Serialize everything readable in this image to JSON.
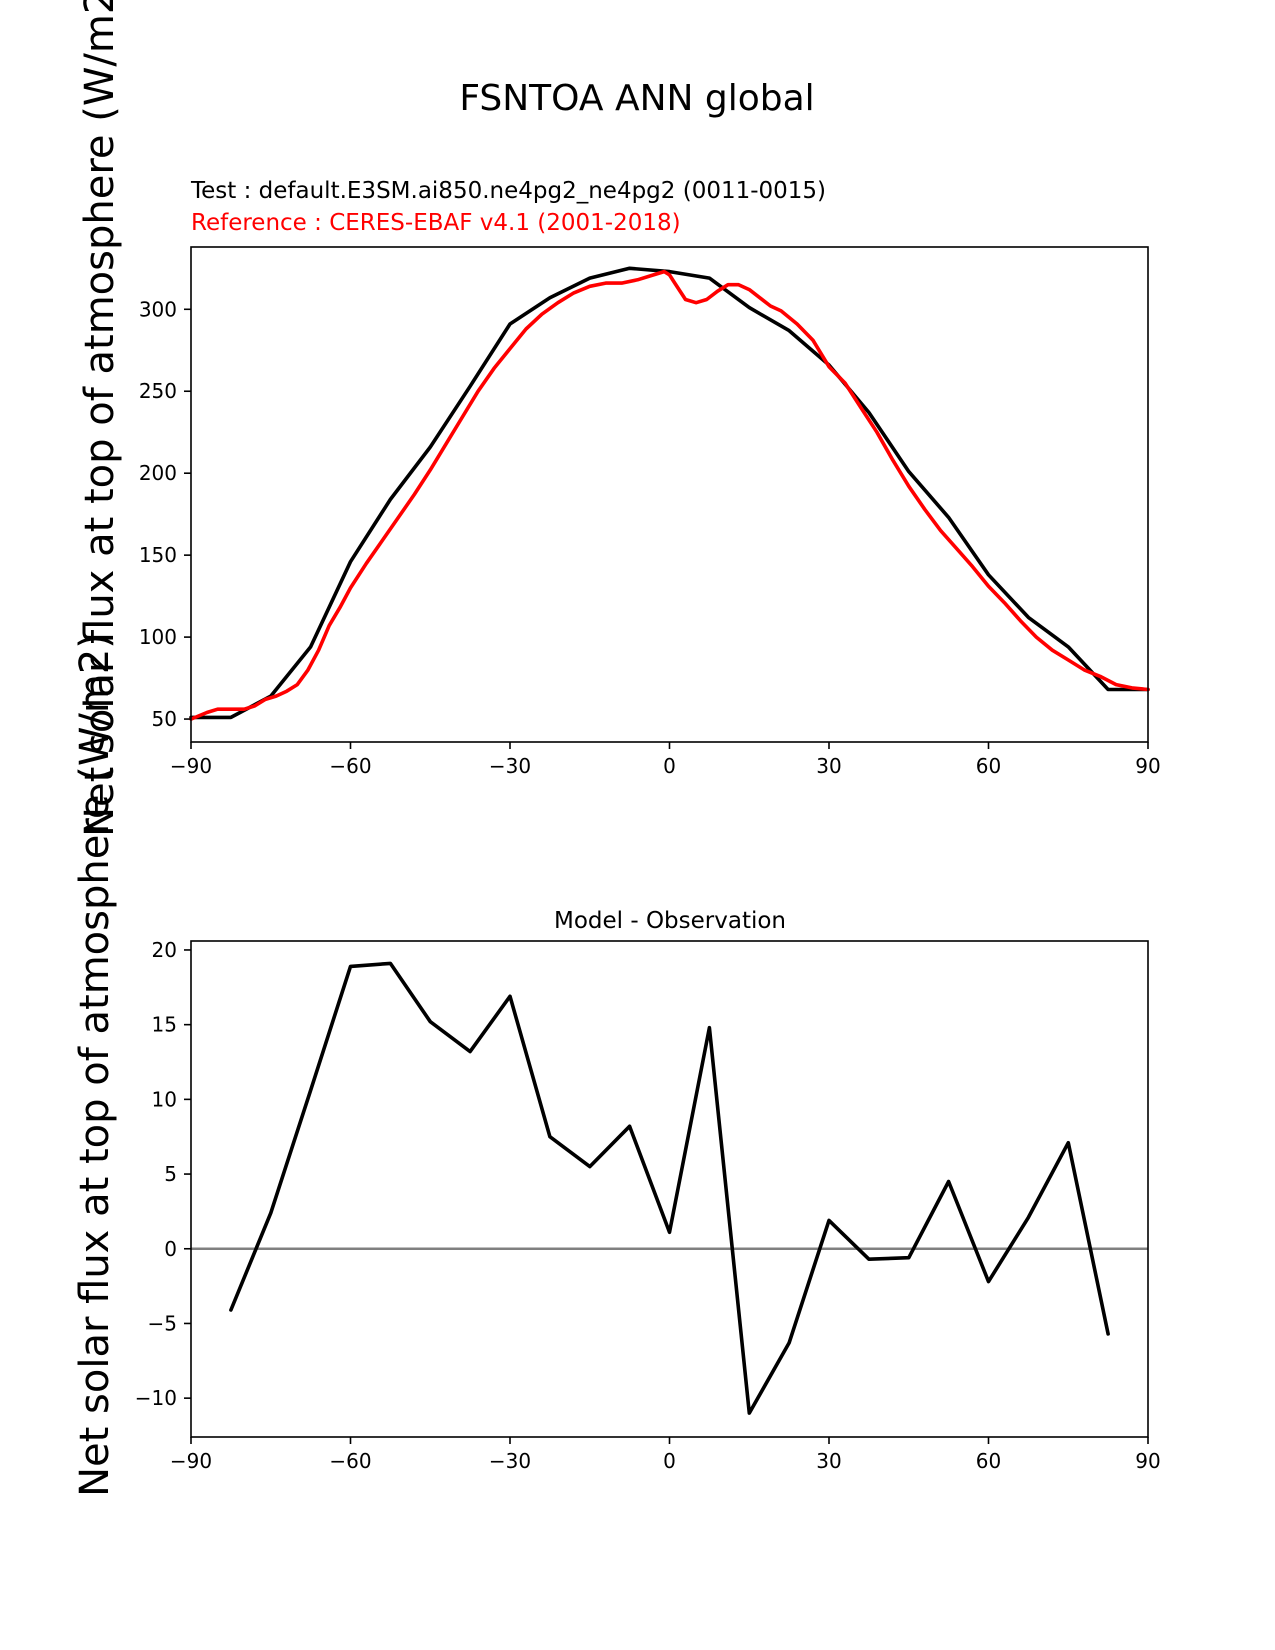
{
  "figure": {
    "title": "FSNTOA ANN global",
    "test_label": "Test : default.E3SM.ai850.ne4pg2_ne4pg2 (0011-0015)",
    "ref_label": "Reference : CERES-EBAF v4.1 (2001-2018)",
    "ylabel": "Net solar flux at top of atmosphere (W/m2)",
    "colors": {
      "test": "#000000",
      "reference": "#ff0000",
      "zero_line": "#808080"
    }
  },
  "chart_data": [
    {
      "type": "line",
      "title": "",
      "xlabel": "",
      "ylabel": "Net solar flux at top of atmosphere (W/m2)",
      "xlim": [
        -90,
        90
      ],
      "ylim": [
        36,
        338
      ],
      "xticks": [
        -90,
        -60,
        -30,
        0,
        30,
        60,
        90
      ],
      "xtick_labels": [
        "−90",
        "−60",
        "−30",
        "0",
        "30",
        "60",
        "90"
      ],
      "yticks": [
        50,
        100,
        150,
        200,
        250,
        300
      ],
      "ytick_labels": [
        "50",
        "100",
        "150",
        "200",
        "250",
        "300"
      ],
      "series": [
        {
          "name": "Test",
          "color": "#000000",
          "x": [
            -90,
            -82.5,
            -75,
            -67.5,
            -60,
            -52.5,
            -45,
            -37.5,
            -30,
            -22.5,
            -15,
            -7.5,
            0,
            7.5,
            15,
            22.5,
            30,
            37.5,
            45,
            52.5,
            60,
            67.5,
            75,
            82.5,
            90
          ],
          "y": [
            51,
            51,
            64,
            94,
            146,
            184,
            216,
            253,
            291,
            307,
            319,
            325,
            323,
            319,
            301,
            287,
            266,
            237,
            201,
            173,
            138,
            112,
            94,
            68,
            68
          ]
        },
        {
          "name": "Reference",
          "color": "#ff0000",
          "x": [
            -90,
            -87,
            -85,
            -82,
            -80,
            -78,
            -76,
            -74,
            -72,
            -70,
            -68,
            -66,
            -64,
            -62,
            -60,
            -57,
            -54,
            -51,
            -48,
            -45,
            -42,
            -39,
            -36,
            -33,
            -30,
            -27,
            -24,
            -21,
            -18,
            -15,
            -12,
            -9,
            -6,
            -3,
            -1,
            0,
            1,
            3,
            5,
            7,
            9,
            11,
            13,
            15,
            17,
            19,
            21,
            24,
            27,
            30,
            33,
            36,
            39,
            42,
            45,
            48,
            51,
            54,
            57,
            60,
            63,
            66,
            69,
            72,
            75,
            78,
            81,
            84,
            87,
            90
          ],
          "y": [
            50,
            54,
            56,
            56,
            56,
            58,
            62,
            64,
            67,
            71,
            80,
            92,
            107,
            118,
            130,
            145,
            159,
            173,
            187,
            202,
            218,
            234,
            250,
            264,
            276,
            288,
            297,
            304,
            310,
            314,
            316,
            316,
            318,
            321,
            323,
            321,
            316,
            306,
            304,
            306,
            311,
            315,
            315,
            312,
            307,
            302,
            299,
            291,
            281,
            265,
            255,
            240,
            225,
            208,
            192,
            178,
            165,
            154,
            143,
            131,
            121,
            110,
            100,
            92,
            86,
            80,
            76,
            71,
            69,
            68
          ]
        }
      ]
    },
    {
      "type": "line",
      "title": "Model - Observation",
      "xlabel": "",
      "ylabel": "",
      "xlim": [
        -90,
        90
      ],
      "ylim": [
        -12.6,
        20.6
      ],
      "xticks": [
        -90,
        -60,
        -30,
        0,
        30,
        60,
        90
      ],
      "xtick_labels": [
        "−90",
        "−60",
        "−30",
        "0",
        "30",
        "60",
        "90"
      ],
      "yticks": [
        -10,
        -5,
        0,
        5,
        10,
        15,
        20
      ],
      "ytick_labels": [
        "−10",
        "−5",
        "0",
        "5",
        "10",
        "15",
        "20"
      ],
      "zero_line": true,
      "series": [
        {
          "name": "Model - Observation",
          "color": "#000000",
          "x": [
            -82.5,
            -75,
            -67.5,
            -60,
            -52.5,
            -45,
            -37.5,
            -30,
            -22.5,
            -15,
            -7.5,
            0,
            7.5,
            15,
            22.5,
            30,
            37.5,
            45,
            52.5,
            60,
            67.5,
            75,
            82.5
          ],
          "y": [
            -4.1,
            2.4,
            10.6,
            18.9,
            19.1,
            15.2,
            13.2,
            16.9,
            7.5,
            5.5,
            8.2,
            1.1,
            14.8,
            -11.0,
            -6.3,
            1.9,
            -0.7,
            -0.6,
            4.5,
            -2.2,
            2.1,
            7.1,
            -5.7
          ]
        }
      ]
    }
  ]
}
